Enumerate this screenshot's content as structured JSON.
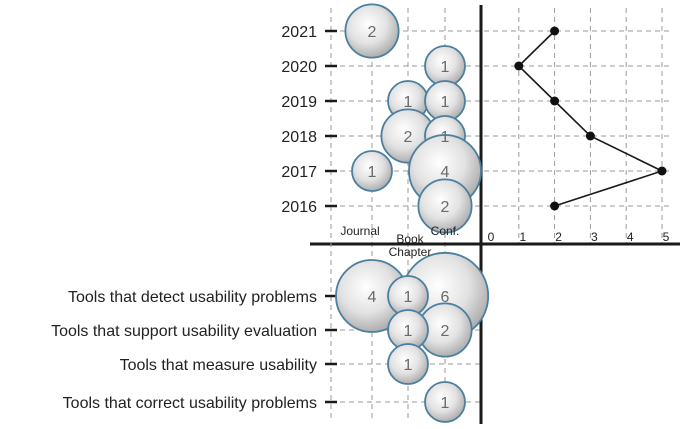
{
  "chart_data": {
    "type": "bubble",
    "years": [
      "2021",
      "2020",
      "2019",
      "2018",
      "2017",
      "2016"
    ],
    "categories": [
      "Tools that detect usability problems",
      "Tools that support usability evaluation",
      "Tools that measure usability",
      "Tools that correct usability problems"
    ],
    "venues": [
      "Journal",
      "Book Chapter",
      "Conf."
    ],
    "year_bubbles": [
      {
        "year": "2021",
        "venue": "Journal",
        "count": 2
      },
      {
        "year": "2020",
        "venue": "Conf.",
        "count": 1
      },
      {
        "year": "2019",
        "venue": "Book Chapter",
        "count": 1
      },
      {
        "year": "2019",
        "venue": "Conf.",
        "count": 1
      },
      {
        "year": "2018",
        "venue": "Book Chapter",
        "count": 2
      },
      {
        "year": "2018",
        "venue": "Conf.",
        "count": 1
      },
      {
        "year": "2017",
        "venue": "Journal",
        "count": 1
      },
      {
        "year": "2017",
        "venue": "Conf.",
        "count": 4
      },
      {
        "year": "2016",
        "venue": "Conf.",
        "count": 2
      }
    ],
    "category_bubbles": [
      {
        "category": "Tools that detect usability problems",
        "venue": "Journal",
        "count": 4
      },
      {
        "category": "Tools that detect usability problems",
        "venue": "Book Chapter",
        "count": 1
      },
      {
        "category": "Tools that detect usability problems",
        "venue": "Conf.",
        "count": 6
      },
      {
        "category": "Tools that support usability evaluation",
        "venue": "Book Chapter",
        "count": 1
      },
      {
        "category": "Tools that support usability evaluation",
        "venue": "Conf.",
        "count": 2
      },
      {
        "category": "Tools that measure usability",
        "venue": "Book Chapter",
        "count": 1
      },
      {
        "category": "Tools that correct usability problems",
        "venue": "Conf.",
        "count": 1
      }
    ],
    "line_series": {
      "x_ticks": [
        "0",
        "1",
        "2",
        "3",
        "4",
        "5"
      ],
      "xlim": [
        0,
        5
      ],
      "points": [
        {
          "year": "2021",
          "value": 2
        },
        {
          "year": "2020",
          "value": 1
        },
        {
          "year": "2019",
          "value": 2
        },
        {
          "year": "2018",
          "value": 3
        },
        {
          "year": "2017",
          "value": 5
        },
        {
          "year": "2016",
          "value": 2
        }
      ]
    },
    "grid": true
  }
}
